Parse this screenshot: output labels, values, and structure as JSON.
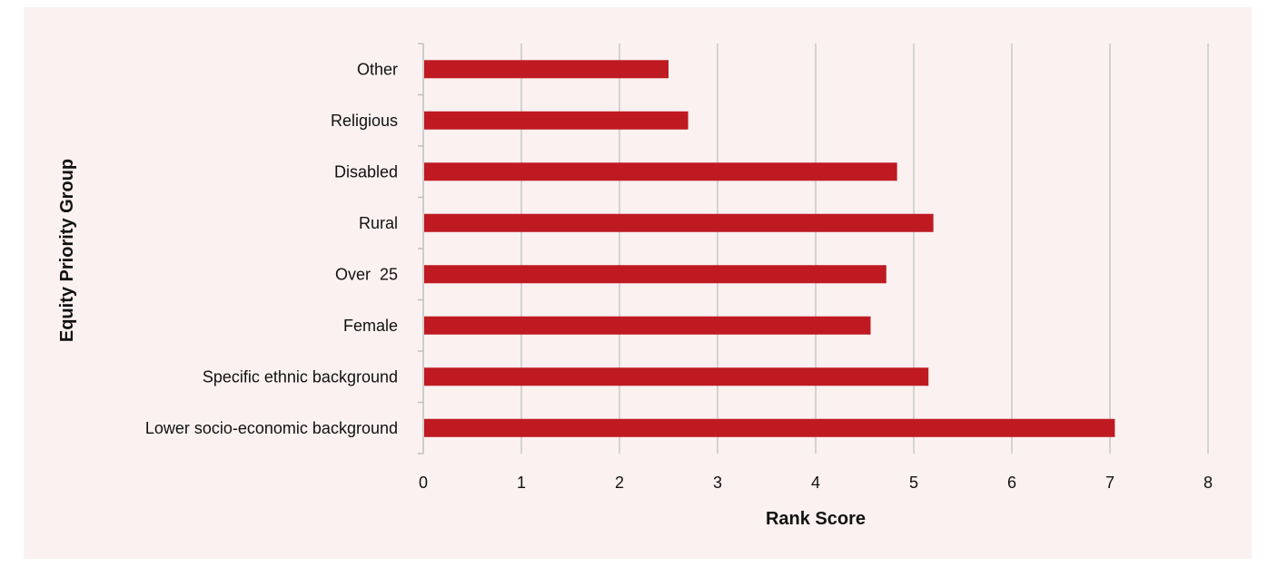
{
  "chart_data": {
    "type": "bar",
    "orientation": "horizontal",
    "categories": [
      "Other",
      "Religious",
      "Disabled",
      "Rural",
      "Over  25",
      "Female",
      "Specific ethnic background",
      "Lower socio-economic background"
    ],
    "values": [
      2.5,
      2.7,
      4.83,
      5.2,
      4.72,
      4.56,
      5.15,
      7.05
    ],
    "xlabel": "Rank Score",
    "ylabel": "Equity Priority Group",
    "xlim": [
      0,
      8
    ],
    "xticks": [
      "0",
      "1",
      "2",
      "3",
      "4",
      "5",
      "6",
      "7",
      "8"
    ],
    "grid": "vertical",
    "legend": "none",
    "colors": {
      "bar": "#bf1a22",
      "grid": "#d3d3d3",
      "background": "#fbf1f1",
      "axis": "#bfbfbf"
    }
  }
}
